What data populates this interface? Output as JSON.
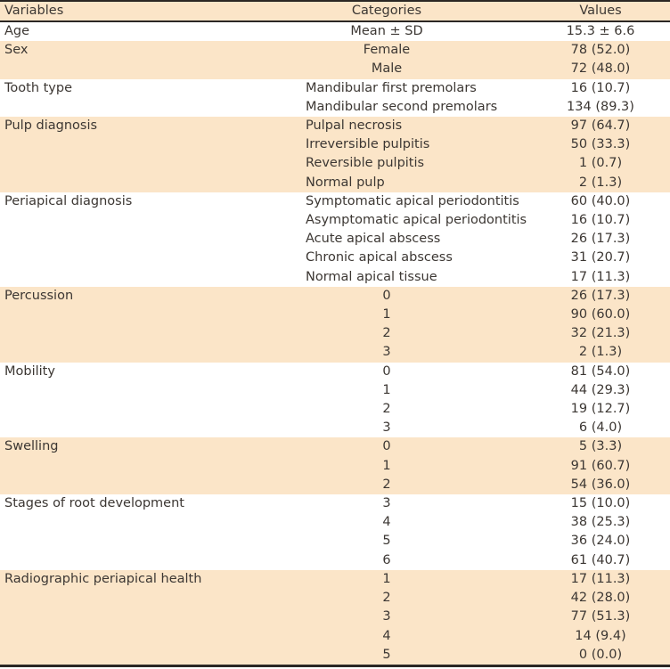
{
  "colors": {
    "band": "#fbe5c8",
    "border": "#2b2724",
    "text": "#3c3733",
    "background": "#ffffff"
  },
  "table": {
    "columns": [
      "Variables",
      "Categories",
      "Values"
    ],
    "groups": [
      {
        "variable": "Age",
        "shaded": false,
        "align": "center",
        "rows": [
          {
            "category": "Mean ± SD",
            "value": "15.3 ± 6.6"
          }
        ]
      },
      {
        "variable": "Sex",
        "shaded": true,
        "align": "center",
        "rows": [
          {
            "category": "Female",
            "value": "78 (52.0)"
          },
          {
            "category": "Male",
            "value": "72 (48.0)"
          }
        ]
      },
      {
        "variable": "Tooth type",
        "shaded": false,
        "align": "left",
        "rows": [
          {
            "category": "Mandibular first premolars",
            "value": "16 (10.7)"
          },
          {
            "category": "Mandibular second premolars",
            "value": "134 (89.3)"
          }
        ]
      },
      {
        "variable": "Pulp diagnosis",
        "shaded": true,
        "align": "left",
        "rows": [
          {
            "category": "Pulpal necrosis",
            "value": "97 (64.7)"
          },
          {
            "category": "Irreversible pulpitis",
            "value": "50 (33.3)"
          },
          {
            "category": "Reversible pulpitis",
            "value": "1 (0.7)"
          },
          {
            "category": "Normal pulp",
            "value": "2 (1.3)"
          }
        ]
      },
      {
        "variable": "Periapical diagnosis",
        "shaded": false,
        "align": "left",
        "rows": [
          {
            "category": "Symptomatic apical periodontitis",
            "value": "60 (40.0)"
          },
          {
            "category": "Asymptomatic apical periodontitis",
            "value": "16 (10.7)"
          },
          {
            "category": "Acute apical abscess",
            "value": "26 (17.3)"
          },
          {
            "category": "Chronic apical abscess",
            "value": "31 (20.7)"
          },
          {
            "category": "Normal apical tissue",
            "value": "17 (11.3)"
          }
        ]
      },
      {
        "variable": "Percussion",
        "shaded": true,
        "align": "center",
        "rows": [
          {
            "category": "0",
            "value": "26 (17.3)"
          },
          {
            "category": "1",
            "value": "90 (60.0)"
          },
          {
            "category": "2",
            "value": "32 (21.3)"
          },
          {
            "category": "3",
            "value": "2 (1.3)"
          }
        ]
      },
      {
        "variable": "Mobility",
        "shaded": false,
        "align": "center",
        "rows": [
          {
            "category": "0",
            "value": "81 (54.0)"
          },
          {
            "category": "1",
            "value": "44 (29.3)"
          },
          {
            "category": "2",
            "value": "19 (12.7)"
          },
          {
            "category": "3",
            "value": "6 (4.0)"
          }
        ]
      },
      {
        "variable": "Swelling",
        "shaded": true,
        "align": "center",
        "rows": [
          {
            "category": "0",
            "value": "5 (3.3)"
          },
          {
            "category": "1",
            "value": "91 (60.7)"
          },
          {
            "category": "2",
            "value": "54 (36.0)"
          }
        ]
      },
      {
        "variable": "Stages of root development",
        "shaded": false,
        "align": "center",
        "rows": [
          {
            "category": "3",
            "value": "15 (10.0)"
          },
          {
            "category": "4",
            "value": "38 (25.3)"
          },
          {
            "category": "5",
            "value": "36 (24.0)"
          },
          {
            "category": "6",
            "value": "61 (40.7)"
          }
        ]
      },
      {
        "variable": "Radiographic periapical health",
        "shaded": true,
        "align": "center",
        "rows": [
          {
            "category": "1",
            "value": "17 (11.3)"
          },
          {
            "category": "2",
            "value": "42 (28.0)"
          },
          {
            "category": "3",
            "value": "77 (51.3)"
          },
          {
            "category": "4",
            "value": "14 (9.4)"
          },
          {
            "category": "5",
            "value": "0 (0.0)"
          }
        ]
      }
    ]
  }
}
